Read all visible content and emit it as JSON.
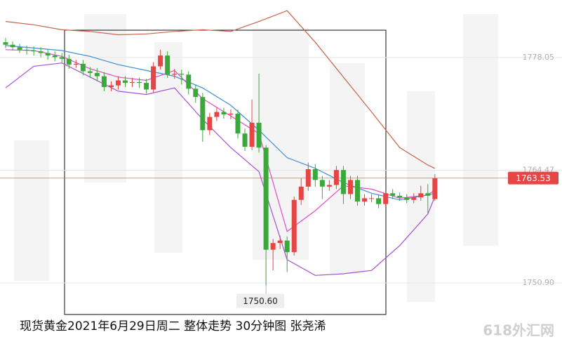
{
  "chart_data": {
    "type": "candlestick",
    "title": "现货黄金2021年6月29日周二 整体走势  30分钟图  张尧浠",
    "watermark": "618外汇网",
    "ylim": [
      1742.69,
      1784.99
    ],
    "yticks": [
      {
        "value": 1778.05,
        "label": "1778.05"
      },
      1764.47,
      {
        "value": 1750.9,
        "label": "1750.90"
      }
    ],
    "up_color": "#e64545",
    "down_color": "#3aa83a",
    "open": [
      1779.9,
      1779.6,
      1779.3,
      1779.0,
      1778.9,
      1778.8,
      1778.6,
      1778.3,
      1778.1,
      1777.9,
      1777.2,
      1777.3,
      1776.4,
      1776.2,
      1775.8,
      1774.5,
      1774.7,
      1775.3,
      1775.0,
      1775.1,
      1775.0,
      1774.2,
      1777.0,
      1778.3,
      1776.0,
      1776.1,
      1776.0,
      1774.3,
      1773.3,
      1769.3,
      1770.9,
      1771.5,
      1771.2,
      1771.3,
      1768.9,
      1767.3,
      1770.2,
      1767.2,
      1754.9,
      1755.7,
      1756.0,
      1754.6,
      1760.9,
      1762.5,
      1764.6,
      1763.3,
      1762.5,
      1762.7,
      1764.5,
      1761.6,
      1763.3,
      1760.7,
      1761.1,
      1761.1,
      1760.4,
      1761.7,
      1761.4,
      1761.2,
      1760.9,
      1761.2,
      1761.7,
      1761.0
    ],
    "high": [
      1780.4,
      1780.0,
      1779.7,
      1779.5,
      1779.4,
      1779.3,
      1779.1,
      1778.8,
      1778.6,
      1778.4,
      1777.8,
      1777.8,
      1776.9,
      1776.8,
      1776.3,
      1775.2,
      1775.8,
      1775.8,
      1775.6,
      1775.6,
      1775.5,
      1777.5,
      1779.0,
      1778.8,
      1776.7,
      1776.6,
      1776.4,
      1774.8,
      1773.8,
      1771.4,
      1772.0,
      1772.0,
      1771.8,
      1771.8,
      1769.5,
      1773.0,
      1776.1,
      1767.5,
      1756.2,
      1756.6,
      1756.5,
      1761.3,
      1763.5,
      1765.4,
      1765.2,
      1763.8,
      1763.3,
      1765.0,
      1765.0,
      1763.8,
      1763.8,
      1761.6,
      1761.6,
      1761.6,
      1762.2,
      1762.2,
      1761.8,
      1761.6,
      1761.7,
      1762.6,
      1762.8,
      1764.0
    ],
    "low": [
      1779.2,
      1778.9,
      1778.6,
      1778.4,
      1778.3,
      1778.1,
      1777.8,
      1777.6,
      1777.4,
      1776.7,
      1776.8,
      1775.9,
      1775.6,
      1775.2,
      1774.0,
      1774.0,
      1774.2,
      1774.5,
      1774.5,
      1774.4,
      1773.7,
      1773.8,
      1776.6,
      1775.6,
      1775.5,
      1774.8,
      1773.6,
      1772.6,
      1767.9,
      1768.7,
      1770.4,
      1770.7,
      1770.6,
      1768.3,
      1766.8,
      1766.9,
      1766.6,
      1750.6,
      1752.4,
      1755.0,
      1752.2,
      1754.2,
      1760.3,
      1762.0,
      1762.5,
      1761.0,
      1762.0,
      1762.2,
      1760.4,
      1761.0,
      1760.2,
      1760.2,
      1760.6,
      1759.9,
      1760.0,
      1761.0,
      1760.8,
      1760.5,
      1760.5,
      1760.8,
      1759.3,
      1760.8
    ],
    "close": [
      1779.6,
      1779.3,
      1779.0,
      1778.9,
      1778.8,
      1778.6,
      1778.3,
      1778.1,
      1777.9,
      1777.2,
      1777.3,
      1776.4,
      1776.2,
      1775.8,
      1774.5,
      1774.7,
      1775.3,
      1775.0,
      1775.1,
      1775.0,
      1774.2,
      1777.0,
      1778.3,
      1776.0,
      1776.1,
      1776.0,
      1774.3,
      1773.3,
      1769.3,
      1770.9,
      1771.5,
      1771.2,
      1771.3,
      1768.9,
      1767.3,
      1770.2,
      1767.2,
      1754.9,
      1755.7,
      1756.0,
      1754.6,
      1760.9,
      1762.5,
      1764.6,
      1763.3,
      1762.5,
      1762.7,
      1764.5,
      1761.6,
      1763.3,
      1760.7,
      1761.1,
      1761.1,
      1760.4,
      1761.7,
      1761.4,
      1761.2,
      1760.9,
      1761.2,
      1761.7,
      1761.4,
      1763.5
    ],
    "indicators": [
      {
        "color": "#c9624a",
        "x": [
          0,
          4,
          8,
          12,
          16,
          20,
          24,
          28,
          32,
          36,
          40,
          44,
          48,
          52,
          56,
          60,
          61
        ],
        "values": [
          1782.4,
          1782.0,
          1781.4,
          1781.2,
          1780.8,
          1780.9,
          1781.2,
          1781.4,
          1781.2,
          1782.4,
          1783.7,
          1779.9,
          1775.7,
          1771.5,
          1767.2,
          1765.1,
          1764.7
        ]
      },
      {
        "color": "#3d8fd6",
        "x": [
          0,
          4,
          8,
          12,
          16,
          20,
          24,
          28,
          32,
          36,
          40,
          44,
          48,
          52,
          56,
          60,
          61
        ],
        "values": [
          1779.5,
          1779.2,
          1778.9,
          1778.2,
          1777.2,
          1776.5,
          1775.8,
          1774.4,
          1772.3,
          1769.3,
          1766.0,
          1764.7,
          1763.0,
          1761.7,
          1760.9,
          1761.5,
          1761.7
        ]
      },
      {
        "color": "#e04fc4",
        "x": [
          0,
          4,
          8,
          12,
          16,
          20,
          24,
          28,
          32,
          36,
          40,
          44,
          48,
          52,
          56,
          60,
          61
        ],
        "values": [
          1779.0,
          1778.9,
          1778.2,
          1776.7,
          1775.7,
          1775.3,
          1776.5,
          1773.1,
          1771.0,
          1768.9,
          1757.1,
          1759.6,
          1762.6,
          1762.2,
          1761.1,
          1761.5,
          1762.1
        ]
      },
      {
        "color": "#a64fd8",
        "x": [
          0,
          4,
          8,
          12,
          16,
          20,
          24,
          28,
          32,
          36,
          40,
          44,
          48,
          52,
          56,
          60,
          61
        ],
        "values": [
          1774.4,
          1777.0,
          1777.4,
          1775.7,
          1774.0,
          1773.6,
          1774.4,
          1770.6,
          1767.2,
          1764.3,
          1753.7,
          1751.8,
          1752.0,
          1752.4,
          1755.4,
          1759.2,
          1761.3
        ]
      }
    ],
    "last_price": 1763.53,
    "last_color": "#e64545",
    "low_marker": {
      "value": 1750.6,
      "label": "1750.60"
    }
  }
}
